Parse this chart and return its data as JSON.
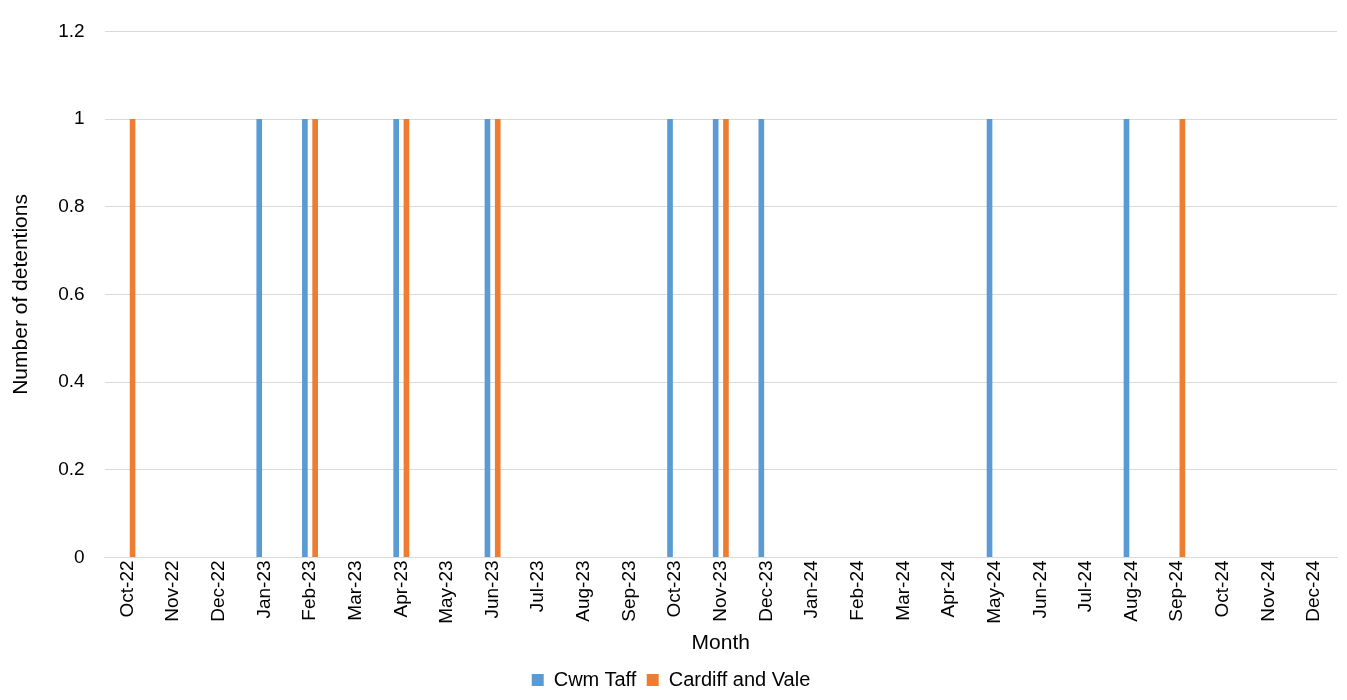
{
  "chart_data": {
    "type": "bar",
    "xlabel": "Month",
    "ylabel": "Number of detentions",
    "categories": [
      "Oct-22",
      "Nov-22",
      "Dec-22",
      "Jan-23",
      "Feb-23",
      "Mar-23",
      "Apr-23",
      "May-23",
      "Jun-23",
      "Jul-23",
      "Aug-23",
      "Sep-23",
      "Oct-23",
      "Nov-23",
      "Dec-23",
      "Jan-24",
      "Feb-24",
      "Mar-24",
      "Apr-24",
      "May-24",
      "Jun-24",
      "Jul-24",
      "Aug-24",
      "Sep-24",
      "Oct-24",
      "Nov-24",
      "Dec-24"
    ],
    "series": [
      {
        "name": "Cwm Taff",
        "color": "#5b9bd5",
        "values": [
          0,
          0,
          0,
          1,
          1,
          0,
          1,
          0,
          1,
          0,
          0,
          0,
          1,
          1,
          1,
          0,
          0,
          0,
          0,
          1,
          0,
          0,
          1,
          0,
          0,
          0,
          0
        ]
      },
      {
        "name": "Cardiff and Vale",
        "color": "#ed7d31",
        "values": [
          1,
          0,
          0,
          0,
          1,
          0,
          1,
          0,
          1,
          0,
          0,
          0,
          0,
          1,
          0,
          0,
          0,
          0,
          0,
          0,
          0,
          0,
          0,
          1,
          0,
          0,
          0
        ]
      }
    ],
    "ylim": [
      0,
      1.2
    ],
    "yticks": [
      0,
      0.2,
      0.4,
      0.6,
      0.8,
      1,
      1.2
    ],
    "grid": "y",
    "legend": "bottom"
  }
}
